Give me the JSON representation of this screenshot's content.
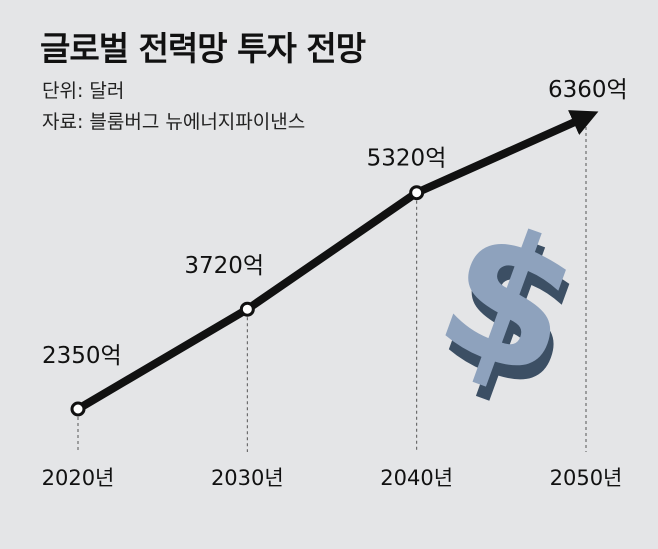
{
  "chart_data": {
    "type": "line",
    "title": "글로벌 전력망 투자 전망",
    "unit_label": "단위: 달러",
    "source_label": "자료: 블룸버그 뉴에너지파이낸스",
    "categories": [
      "2020년",
      "2030년",
      "2040년",
      "2050년"
    ],
    "values": [
      2350,
      3720,
      5320,
      6360
    ],
    "data_labels": [
      "2350억",
      "3720억",
      "5320억",
      "6360억"
    ],
    "grid": false,
    "line_color": "#111111",
    "decoration": "dollar-sign-icon"
  }
}
